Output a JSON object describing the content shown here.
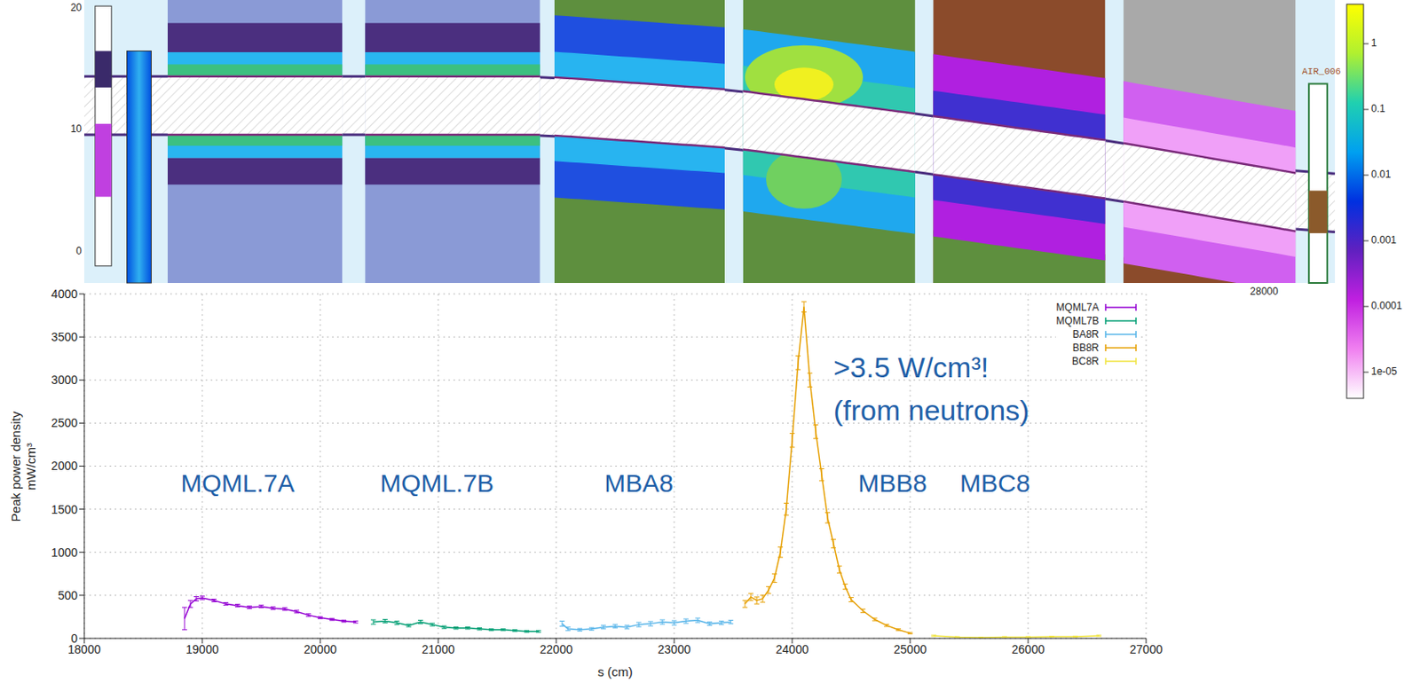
{
  "chart_data": [
    {
      "type": "map",
      "xlim": [
        18000,
        29000
      ],
      "ylim": [
        -2.6,
        20.7
      ],
      "yticks": [
        0,
        10,
        20
      ],
      "xticks": [
        28000
      ],
      "labels": [
        "AIR_006"
      ],
      "colorbar": {
        "range": [
          4e-06,
          4
        ],
        "ticks": [
          1,
          0.1,
          0.01,
          0.001,
          0.0001,
          {
            "value": 1e-05,
            "label": "1e-05"
          }
        ],
        "log": true
      }
    },
    {
      "type": "line",
      "xlabel": "s (cm)",
      "ylabel": [
        "Peak power density",
        "mW/cm³"
      ],
      "xlim": [
        18000,
        27000
      ],
      "xticks": [
        18000,
        19000,
        20000,
        21000,
        22000,
        23000,
        24000,
        25000,
        26000,
        27000
      ],
      "ylim": [
        0,
        4000
      ],
      "yticks": [
        0,
        500,
        1000,
        1500,
        2000,
        2500,
        3000,
        3500,
        4000
      ],
      "grid": true,
      "legend": "upper right",
      "annotations": [
        ">3.5 W/cm³!",
        "(from neutrons)"
      ],
      "section_labels": [
        "MQML.7A",
        "MQML.7B",
        "MBA8",
        "MBB8",
        "MBC8"
      ],
      "series": [
        {
          "name": "MQML7A",
          "color": "#9400d3",
          "x": [
            18850,
            18900,
            18950,
            19000,
            19100,
            19200,
            19300,
            19400,
            19500,
            19600,
            19700,
            19800,
            19900,
            20000,
            20100,
            20200,
            20300
          ],
          "values": [
            230,
            400,
            460,
            470,
            440,
            400,
            380,
            360,
            370,
            350,
            340,
            310,
            270,
            240,
            220,
            200,
            190
          ],
          "errors": [
            130,
            40,
            25,
            20,
            15,
            15,
            15,
            15,
            15,
            15,
            15,
            15,
            15,
            12,
            12,
            12,
            12
          ]
        },
        {
          "name": "MQML7B",
          "color": "#009e73",
          "x": [
            20450,
            20550,
            20650,
            20750,
            20850,
            20950,
            21050,
            21150,
            21250,
            21350,
            21450,
            21550,
            21650,
            21750,
            21850
          ],
          "values": [
            190,
            200,
            180,
            150,
            190,
            160,
            130,
            120,
            120,
            110,
            100,
            100,
            90,
            80,
            80
          ],
          "errors": [
            25,
            20,
            20,
            15,
            20,
            15,
            15,
            12,
            12,
            12,
            10,
            10,
            10,
            10,
            10
          ]
        },
        {
          "name": "BA8R",
          "color": "#56b4e9",
          "x": [
            22050,
            22100,
            22200,
            22300,
            22400,
            22500,
            22600,
            22700,
            22800,
            22900,
            23000,
            23100,
            23200,
            23300,
            23400,
            23480
          ],
          "values": [
            170,
            110,
            100,
            110,
            130,
            140,
            130,
            160,
            170,
            190,
            180,
            200,
            210,
            170,
            180,
            190
          ],
          "errors": [
            30,
            20,
            15,
            15,
            20,
            20,
            20,
            25,
            25,
            25,
            25,
            25,
            25,
            20,
            20,
            20
          ]
        },
        {
          "name": "BB8R",
          "color": "#e69f00",
          "x": [
            23600,
            23650,
            23700,
            23750,
            23800,
            23850,
            23900,
            23950,
            24000,
            24050,
            24100,
            24150,
            24200,
            24250,
            24300,
            24350,
            24400,
            24450,
            24500,
            24600,
            24700,
            24800,
            24900,
            25000
          ],
          "values": [
            400,
            480,
            440,
            460,
            560,
            700,
            1000,
            1500,
            2300,
            3200,
            3850,
            3000,
            2400,
            1900,
            1400,
            1100,
            800,
            600,
            450,
            320,
            220,
            150,
            100,
            60
          ],
          "errors": [
            40,
            40,
            40,
            40,
            40,
            50,
            60,
            70,
            80,
            80,
            60,
            80,
            80,
            70,
            60,
            50,
            40,
            30,
            25,
            20,
            15,
            12,
            10,
            8
          ]
        },
        {
          "name": "BC8R",
          "color": "#f0e442",
          "x": [
            25200,
            25400,
            25600,
            25800,
            26000,
            26200,
            26400,
            26600
          ],
          "values": [
            30,
            15,
            10,
            15,
            15,
            20,
            20,
            30
          ],
          "errors": [
            8,
            5,
            5,
            5,
            5,
            5,
            6,
            8
          ]
        }
      ]
    }
  ]
}
